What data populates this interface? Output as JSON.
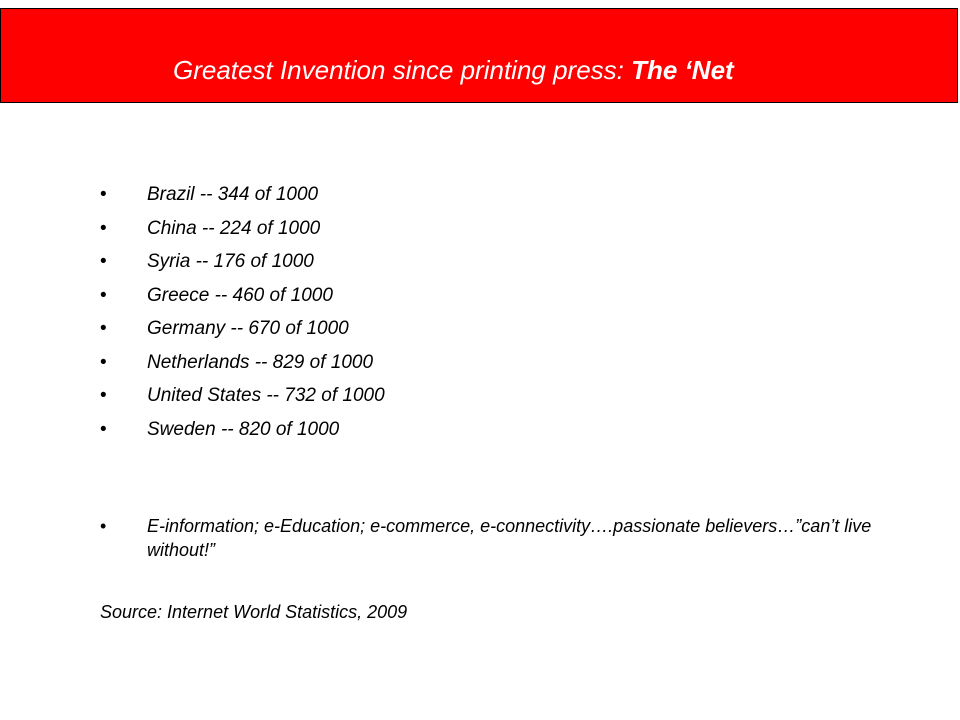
{
  "slide": {
    "title_main": "Greatest Invention since printing press: ",
    "title_bold": "The ‘Net",
    "bullet_char": "•",
    "stats": [
      "Brazil -- 344 of 1000",
      "China -- 224 of 1000",
      "Syria -- 176 of 1000",
      "Greece -- 460 of 1000",
      "Germany -- 670 of 1000",
      "Netherlands -- 829 of 1000",
      "United States -- 732 of 1000",
      "Sweden -- 820 of 1000"
    ],
    "note": "E-information; e-Education; e-commerce, e-connectivity….passionate believers…”can’t live without!”",
    "source": "Source: Internet World Statistics, 2009"
  },
  "colors": {
    "title_bar": "#ff0000",
    "title_text": "#ffffff"
  }
}
